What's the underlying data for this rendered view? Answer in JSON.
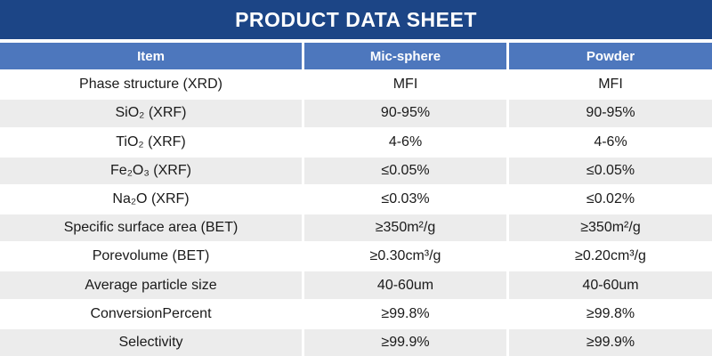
{
  "title": "PRODUCT DATA SHEET",
  "colors": {
    "banner_bg": "#1c4586",
    "header_bg": "#4d77bd",
    "alt_row_bg": "#ececec",
    "body_text": "#1a1a1a",
    "header_text": "#ffffff"
  },
  "table": {
    "columns": [
      "Item",
      "Mic-sphere",
      "Powder"
    ],
    "rows": [
      {
        "item": "Phase structure (XRD)",
        "mic_sphere": "MFI",
        "powder": "MFI"
      },
      {
        "item": "SiO₂ (XRF)",
        "mic_sphere": "90-95%",
        "powder": "90-95%"
      },
      {
        "item": "TiO₂ (XRF)",
        "mic_sphere": "4-6%",
        "powder": "4-6%"
      },
      {
        "item": "Fe₂O₃ (XRF)",
        "mic_sphere": "≤0.05%",
        "powder": "≤0.05%"
      },
      {
        "item": "Na₂O (XRF)",
        "mic_sphere": "≤0.03%",
        "powder": "≤0.02%"
      },
      {
        "item": "Specific surface area (BET)",
        "mic_sphere": "≥350m²/g",
        "powder": "≥350m²/g"
      },
      {
        "item": "Porevolume (BET)",
        "mic_sphere": "≥0.30cm³/g",
        "powder": "≥0.20cm³/g"
      },
      {
        "item": "Average particle size",
        "mic_sphere": "40-60um",
        "powder": "40-60um"
      },
      {
        "item": "ConversionPercent",
        "mic_sphere": "≥99.8%",
        "powder": "≥99.8%"
      },
      {
        "item": "Selectivity",
        "mic_sphere": "≥99.9%",
        "powder": "≥99.9%"
      }
    ]
  }
}
